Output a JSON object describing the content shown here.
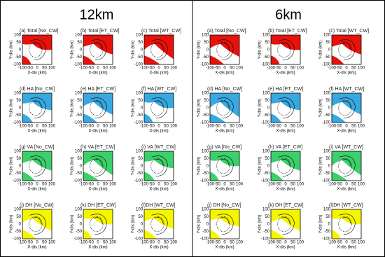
{
  "axes": {
    "x_label": "X-dis (km)",
    "y_label": "Y-dis (km)",
    "ticks": [
      -100,
      -50,
      0,
      50,
      100
    ]
  },
  "groups": [
    {
      "title": "12km",
      "plots": [
        "(a) Total [No_CW]",
        "(b) Total [ET_CW]",
        "(c) Total [WT_CW]",
        "(d) HA [No_CW]",
        "(e) HA [ET_CW]",
        "(f) HA [WT_CW]",
        "(g) VA [No_CW]",
        "(h) VA [ET_CW]",
        "(i) VA [WT_CW]",
        "(j) DH [No_CW]",
        "(k) DH [ET_CW]",
        "(l)DH [WT_CW]"
      ]
    },
    {
      "title": "6km",
      "plots": [
        "(a) Total [No_CW]",
        "(b) Total [ET_CW]",
        "(c) Total [WT_CW]",
        "(d) HA [No_CW]",
        "(e) HA [ET_CW]",
        "(f) HA [WT_CW]",
        "(g) VA [No_CW]",
        "(h) VA [ET_CW]",
        "(i) VA [WT_CW]",
        "(j) DH [No_CW]",
        "(k) DH [ET_CW]",
        "(l)DH [WT_CW]"
      ]
    }
  ]
}
